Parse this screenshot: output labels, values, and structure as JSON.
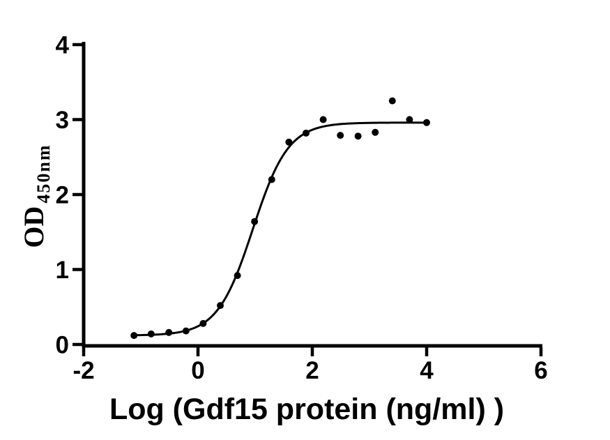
{
  "page": {
    "background": "#ffffff",
    "axis_color": "#000000"
  },
  "chart_data": {
    "type": "scatter",
    "title": "",
    "xlabel": "Log（Gdf15 protein（ng/ml） ）",
    "ylabel": "OD450nm",
    "ylabel_main": "OD",
    "ylabel_sub": "450nm",
    "xlim": [
      -2,
      6
    ],
    "ylim": [
      0,
      4
    ],
    "x_ticks": [
      -2,
      0,
      2,
      4,
      6
    ],
    "y_ticks": [
      0,
      1,
      2,
      3,
      4
    ],
    "grid": false,
    "legend": false,
    "point_color": "#000000",
    "line_color": "#000000",
    "points": [
      [
        -1.12,
        0.12
      ],
      [
        -0.82,
        0.14
      ],
      [
        -0.51,
        0.16
      ],
      [
        -0.21,
        0.18
      ],
      [
        0.09,
        0.28
      ],
      [
        0.39,
        0.52
      ],
      [
        0.69,
        0.92
      ],
      [
        0.99,
        1.64
      ],
      [
        1.29,
        2.2
      ],
      [
        1.59,
        2.7
      ],
      [
        1.89,
        2.82
      ],
      [
        2.19,
        3.0
      ],
      [
        2.49,
        2.79
      ],
      [
        2.8,
        2.78
      ],
      [
        3.1,
        2.83
      ],
      [
        3.4,
        3.25
      ],
      [
        3.7,
        3.0
      ],
      [
        4.0,
        2.96
      ]
    ],
    "fit_curve": {
      "model": "four_parameter_logistic",
      "bottom": 0.12,
      "top": 2.96,
      "log_ec50": 0.96,
      "hill_slope": 1.4,
      "x_start": -1.12,
      "x_end": 4.0
    }
  }
}
